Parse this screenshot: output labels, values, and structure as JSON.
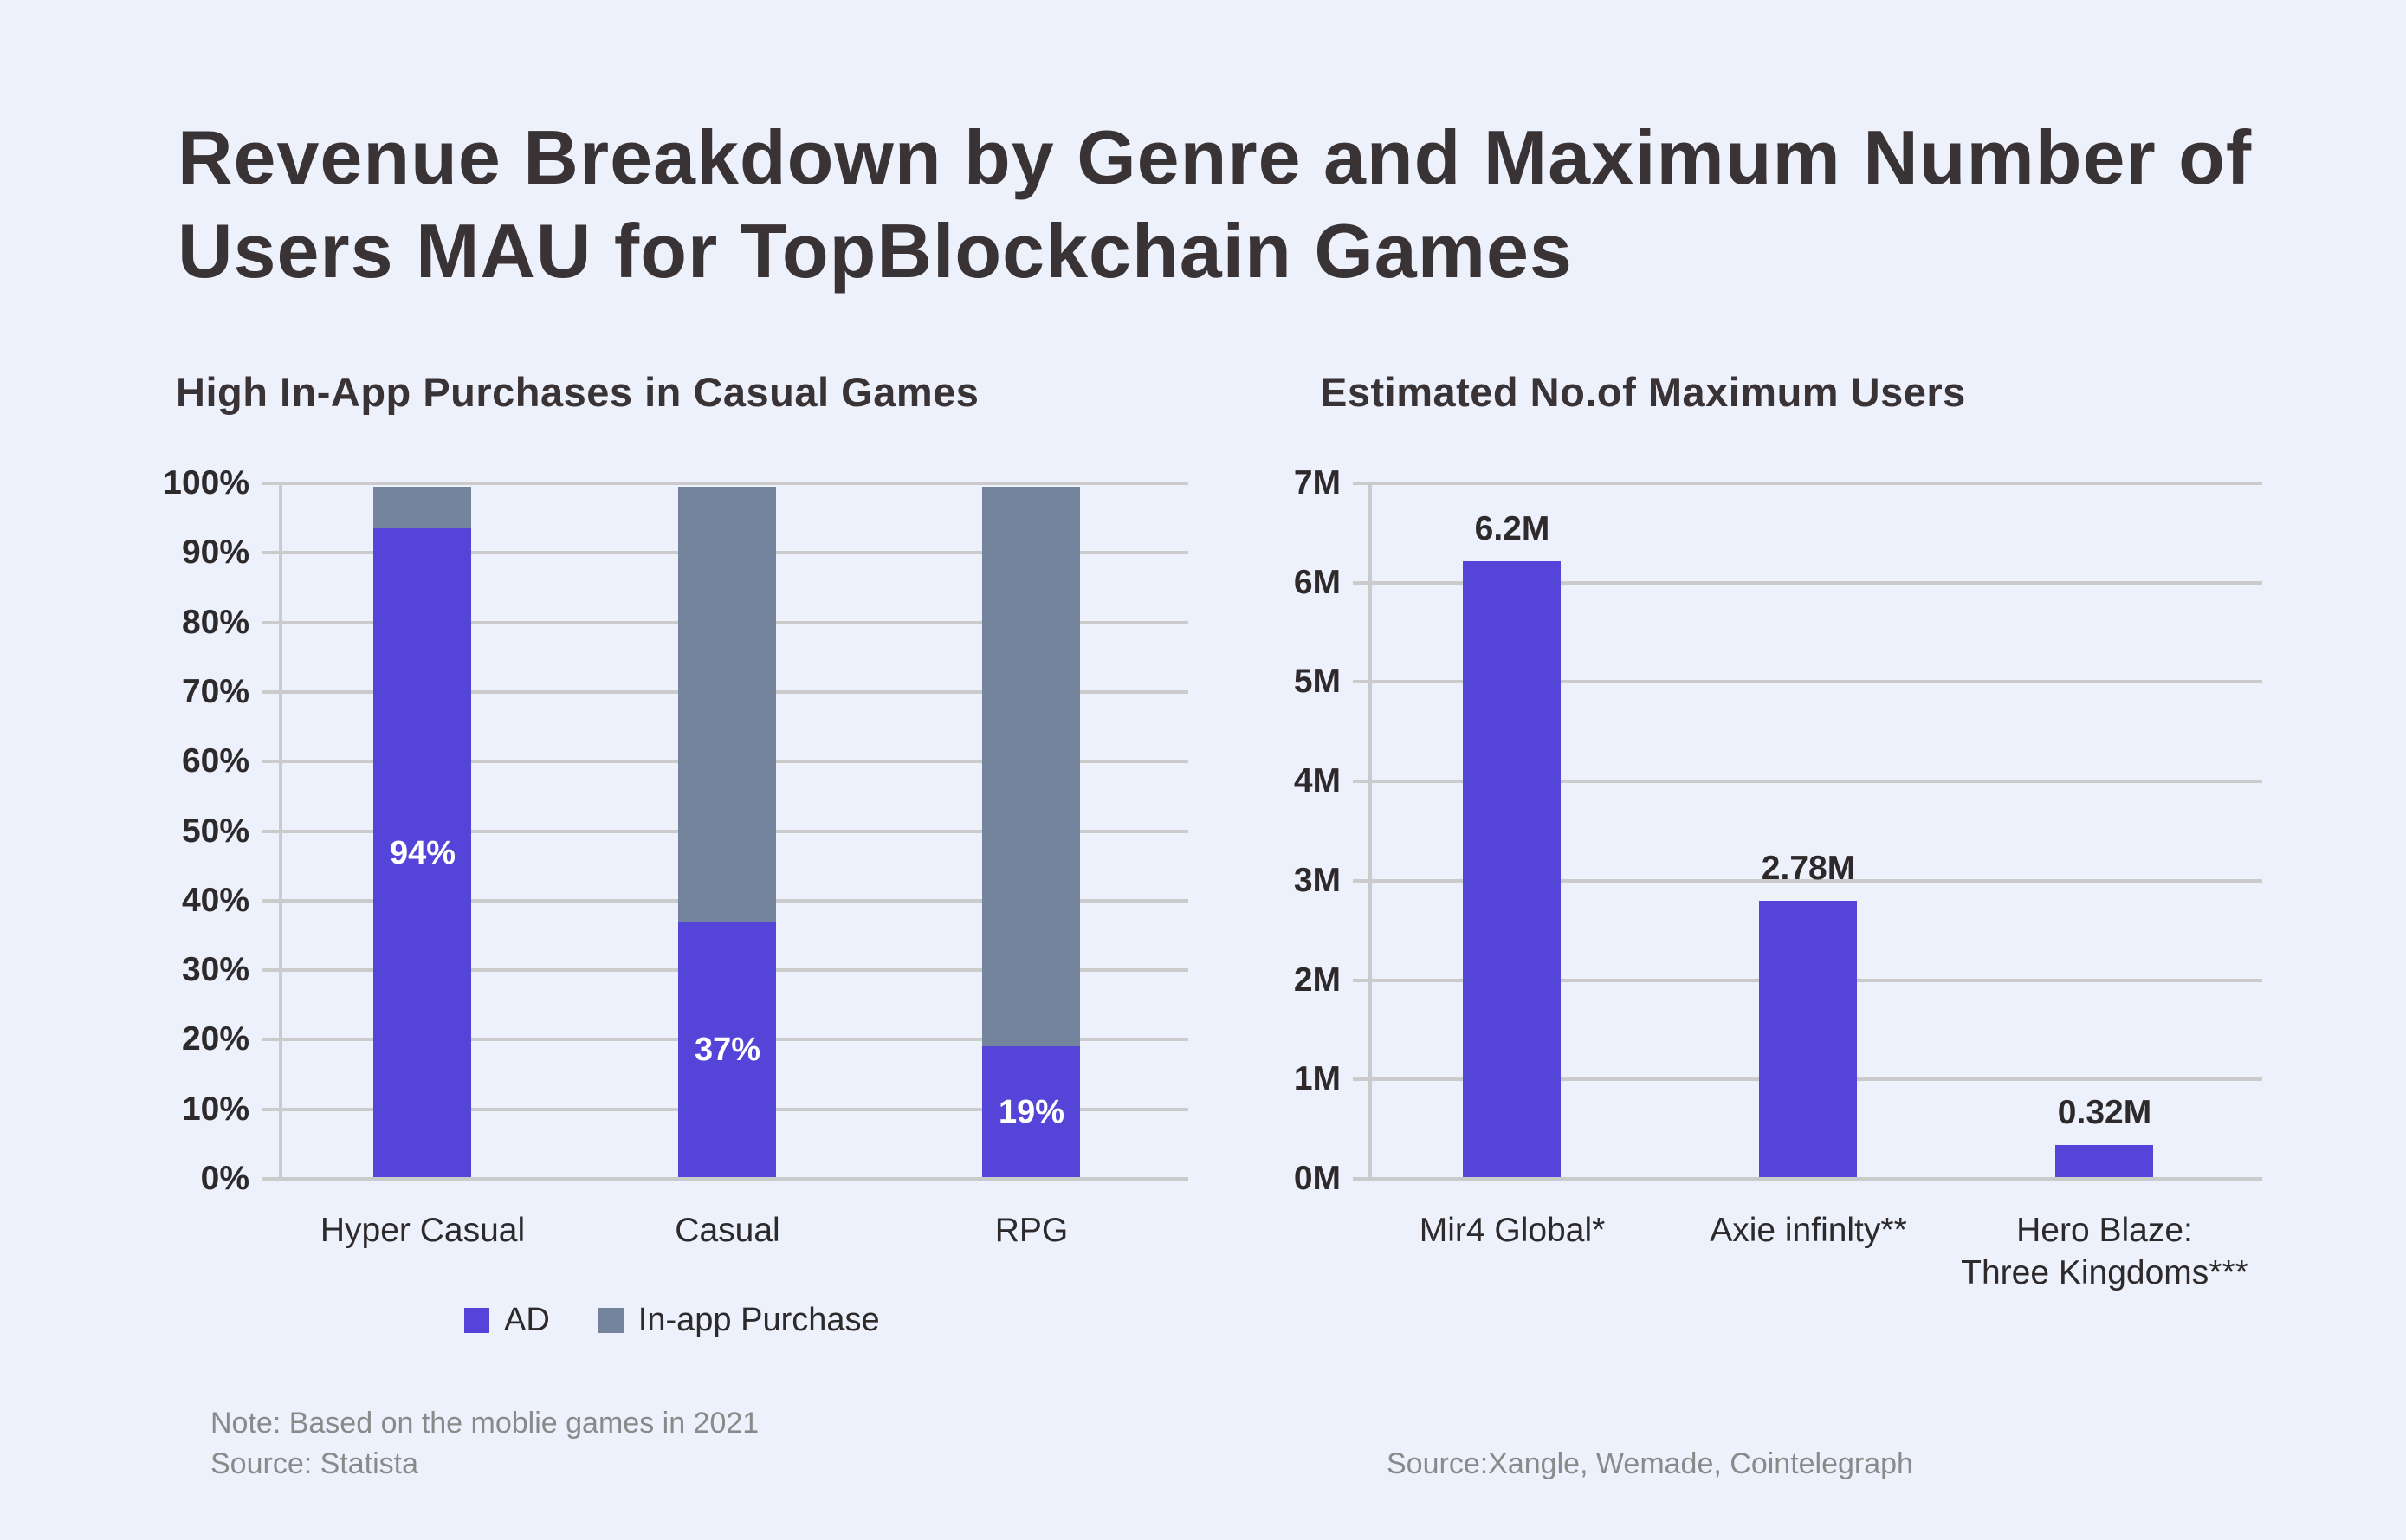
{
  "title": {
    "line1": "Revenue Breakdown by Genre and Maximum Number of",
    "line2": "Users MAU for TopBlockchain Games"
  },
  "colors": {
    "background": "#EDF1FC",
    "purple": "#5444D8",
    "slate": "#74849C",
    "grid": "#CBCBCB",
    "title_text": "#3A3335",
    "label_text": "#2E2A2C",
    "muted_text": "#8A8A8A",
    "bar_label_white": "#FFFFFF"
  },
  "chart_data": [
    {
      "type": "bar",
      "stacked": true,
      "title": "High In-App Purchases in Casual Games",
      "categories": [
        "Hyper Casual",
        "Casual",
        "RPG"
      ],
      "series": [
        {
          "name": "AD",
          "values": [
            94,
            37,
            19
          ]
        },
        {
          "name": "In-app Purchase",
          "values": [
            6,
            63,
            81
          ]
        }
      ],
      "bar_labels": [
        "94%",
        "37%",
        "19%"
      ],
      "yticks": [
        "0%",
        "10%",
        "20%",
        "30%",
        "40%",
        "50%",
        "60%",
        "70%",
        "80%",
        "90%",
        "100%"
      ],
      "ylim": [
        0,
        100
      ],
      "grid": true,
      "legend_position": "bottom",
      "note": "Note: Based on the moblie games in 2021",
      "source": "Source: Statista"
    },
    {
      "type": "bar",
      "stacked": false,
      "title": "Estimated No.of Maximum Users",
      "categories": [
        "Mir4 Global*",
        "Axie infinlty**",
        "Hero Blaze:\nThree Kingdoms***"
      ],
      "values": [
        6.2,
        2.78,
        0.32
      ],
      "value_labels": [
        "6.2M",
        "2.78M",
        "0.32M"
      ],
      "yticks": [
        "0M",
        "1M",
        "2M",
        "3M",
        "4M",
        "5M",
        "6M",
        "7M"
      ],
      "ylim": [
        0,
        7
      ],
      "grid": true,
      "legend_position": "none",
      "source": "Source:Xangle, Wemade, Cointelegraph"
    }
  ]
}
